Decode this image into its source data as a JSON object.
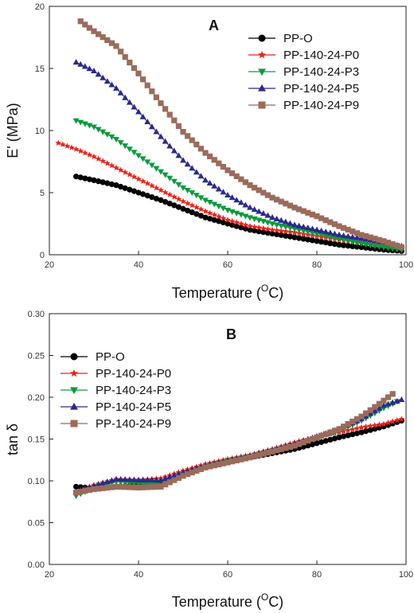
{
  "chart_data": [
    {
      "type": "scatter",
      "panel_label": "A",
      "xlabel": "Temperature (",
      "xlabel_sup": "O",
      "xlabel_tail": "C)",
      "ylabel": "E' (MPa)",
      "xlim": [
        20,
        100
      ],
      "ylim": [
        0,
        20
      ],
      "xticks": [
        20,
        40,
        60,
        80,
        100
      ],
      "yticks": [
        0,
        5,
        10,
        15,
        20
      ],
      "legend_position": "top-right",
      "series": [
        {
          "name": "PP-O",
          "color": "#000000",
          "marker": "circle",
          "x": [
            26,
            30,
            35,
            40,
            45,
            50,
            55,
            60,
            65,
            70,
            75,
            80,
            85,
            90,
            95,
            99
          ],
          "y": [
            6.3,
            6.0,
            5.6,
            5.0,
            4.4,
            3.7,
            3.0,
            2.5,
            2.0,
            1.7,
            1.4,
            1.1,
            0.8,
            0.6,
            0.4,
            0.3
          ]
        },
        {
          "name": "PP-140-24-P0",
          "color": "#e8231c",
          "marker": "star",
          "x": [
            22,
            26,
            30,
            35,
            40,
            45,
            50,
            55,
            60,
            65,
            70,
            75,
            80,
            85,
            90,
            95,
            99
          ],
          "y": [
            9.0,
            8.5,
            7.9,
            7.0,
            6.1,
            5.2,
            4.3,
            3.5,
            2.8,
            2.3,
            2.0,
            1.8,
            1.5,
            1.2,
            1.0,
            0.7,
            0.5
          ]
        },
        {
          "name": "PP-140-24-P3",
          "color": "#0b9a3c",
          "marker": "triangle-down",
          "x": [
            26,
            30,
            35,
            40,
            45,
            50,
            55,
            60,
            65,
            70,
            75,
            80,
            85,
            90,
            95,
            99
          ],
          "y": [
            10.8,
            10.3,
            9.3,
            8.0,
            6.7,
            5.4,
            4.4,
            3.6,
            3.0,
            2.5,
            2.1,
            1.7,
            1.3,
            0.9,
            0.6,
            0.4
          ]
        },
        {
          "name": "PP-140-24-P5",
          "color": "#2a2a8c",
          "marker": "triangle-up",
          "x": [
            26,
            30,
            35,
            40,
            45,
            50,
            55,
            60,
            65,
            70,
            75,
            80,
            85,
            90,
            95,
            99
          ],
          "y": [
            15.5,
            14.8,
            13.4,
            11.5,
            9.5,
            7.6,
            6.0,
            4.8,
            3.8,
            3.0,
            2.4,
            2.0,
            1.6,
            1.3,
            1.0,
            0.7
          ]
        },
        {
          "name": "PP-140-24-P9",
          "color": "#9b6b5a",
          "marker": "square",
          "x": [
            27,
            30,
            35,
            40,
            45,
            50,
            55,
            60,
            65,
            70,
            75,
            80,
            85,
            90,
            95,
            99
          ],
          "y": [
            18.8,
            18.0,
            16.8,
            14.6,
            12.2,
            9.9,
            8.2,
            6.8,
            5.6,
            4.6,
            3.8,
            3.1,
            2.3,
            1.6,
            1.1,
            0.6
          ]
        }
      ]
    },
    {
      "type": "scatter",
      "panel_label": "B",
      "xlabel": "Temperature (",
      "xlabel_sup": "O",
      "xlabel_tail": "C)",
      "ylabel": "tan δ",
      "xlim": [
        20,
        100
      ],
      "ylim": [
        0.0,
        0.3
      ],
      "xticks": [
        20,
        40,
        60,
        80,
        100
      ],
      "yticks": [
        "0.00",
        "0.05",
        "0.10",
        "0.15",
        "0.20",
        "0.25",
        "0.30"
      ],
      "legend_position": "top-left",
      "series": [
        {
          "name": "PP-O",
          "color": "#000000",
          "marker": "circle",
          "x": [
            26,
            30,
            35,
            40,
            45,
            50,
            55,
            60,
            65,
            70,
            75,
            80,
            85,
            90,
            95,
            99
          ],
          "y": [
            0.093,
            0.091,
            0.093,
            0.095,
            0.098,
            0.107,
            0.116,
            0.123,
            0.128,
            0.133,
            0.138,
            0.145,
            0.152,
            0.158,
            0.165,
            0.172
          ]
        },
        {
          "name": "PP-140-24-P0",
          "color": "#e8231c",
          "marker": "star",
          "x": [
            26,
            30,
            35,
            40,
            45,
            50,
            55,
            60,
            65,
            70,
            75,
            80,
            85,
            90,
            95,
            99
          ],
          "y": [
            0.087,
            0.095,
            0.102,
            0.101,
            0.103,
            0.112,
            0.12,
            0.126,
            0.131,
            0.138,
            0.146,
            0.153,
            0.158,
            0.164,
            0.168,
            0.174
          ]
        },
        {
          "name": "PP-140-24-P3",
          "color": "#0b9a3c",
          "marker": "triangle-down",
          "x": [
            26,
            30,
            35,
            40,
            45,
            50,
            55,
            60,
            65,
            70,
            75,
            80,
            85,
            90,
            95,
            98
          ],
          "y": [
            0.082,
            0.092,
            0.099,
            0.097,
            0.095,
            0.108,
            0.117,
            0.124,
            0.129,
            0.136,
            0.143,
            0.152,
            0.16,
            0.172,
            0.187,
            0.195
          ]
        },
        {
          "name": "PP-140-24-P5",
          "color": "#2a2a8c",
          "marker": "triangle-up",
          "x": [
            26,
            30,
            35,
            40,
            45,
            50,
            55,
            60,
            65,
            70,
            75,
            80,
            85,
            90,
            95,
            99
          ],
          "y": [
            0.086,
            0.094,
            0.102,
            0.101,
            0.101,
            0.11,
            0.118,
            0.124,
            0.13,
            0.137,
            0.144,
            0.153,
            0.162,
            0.174,
            0.19,
            0.197
          ]
        },
        {
          "name": "PP-140-24-P9",
          "color": "#9b6b5a",
          "marker": "square",
          "x": [
            26,
            30,
            35,
            40,
            45,
            50,
            55,
            60,
            65,
            70,
            75,
            80,
            85,
            90,
            95,
            97
          ],
          "y": [
            0.086,
            0.09,
            0.093,
            0.092,
            0.093,
            0.106,
            0.116,
            0.122,
            0.128,
            0.135,
            0.142,
            0.152,
            0.162,
            0.177,
            0.196,
            0.204
          ]
        }
      ]
    }
  ]
}
